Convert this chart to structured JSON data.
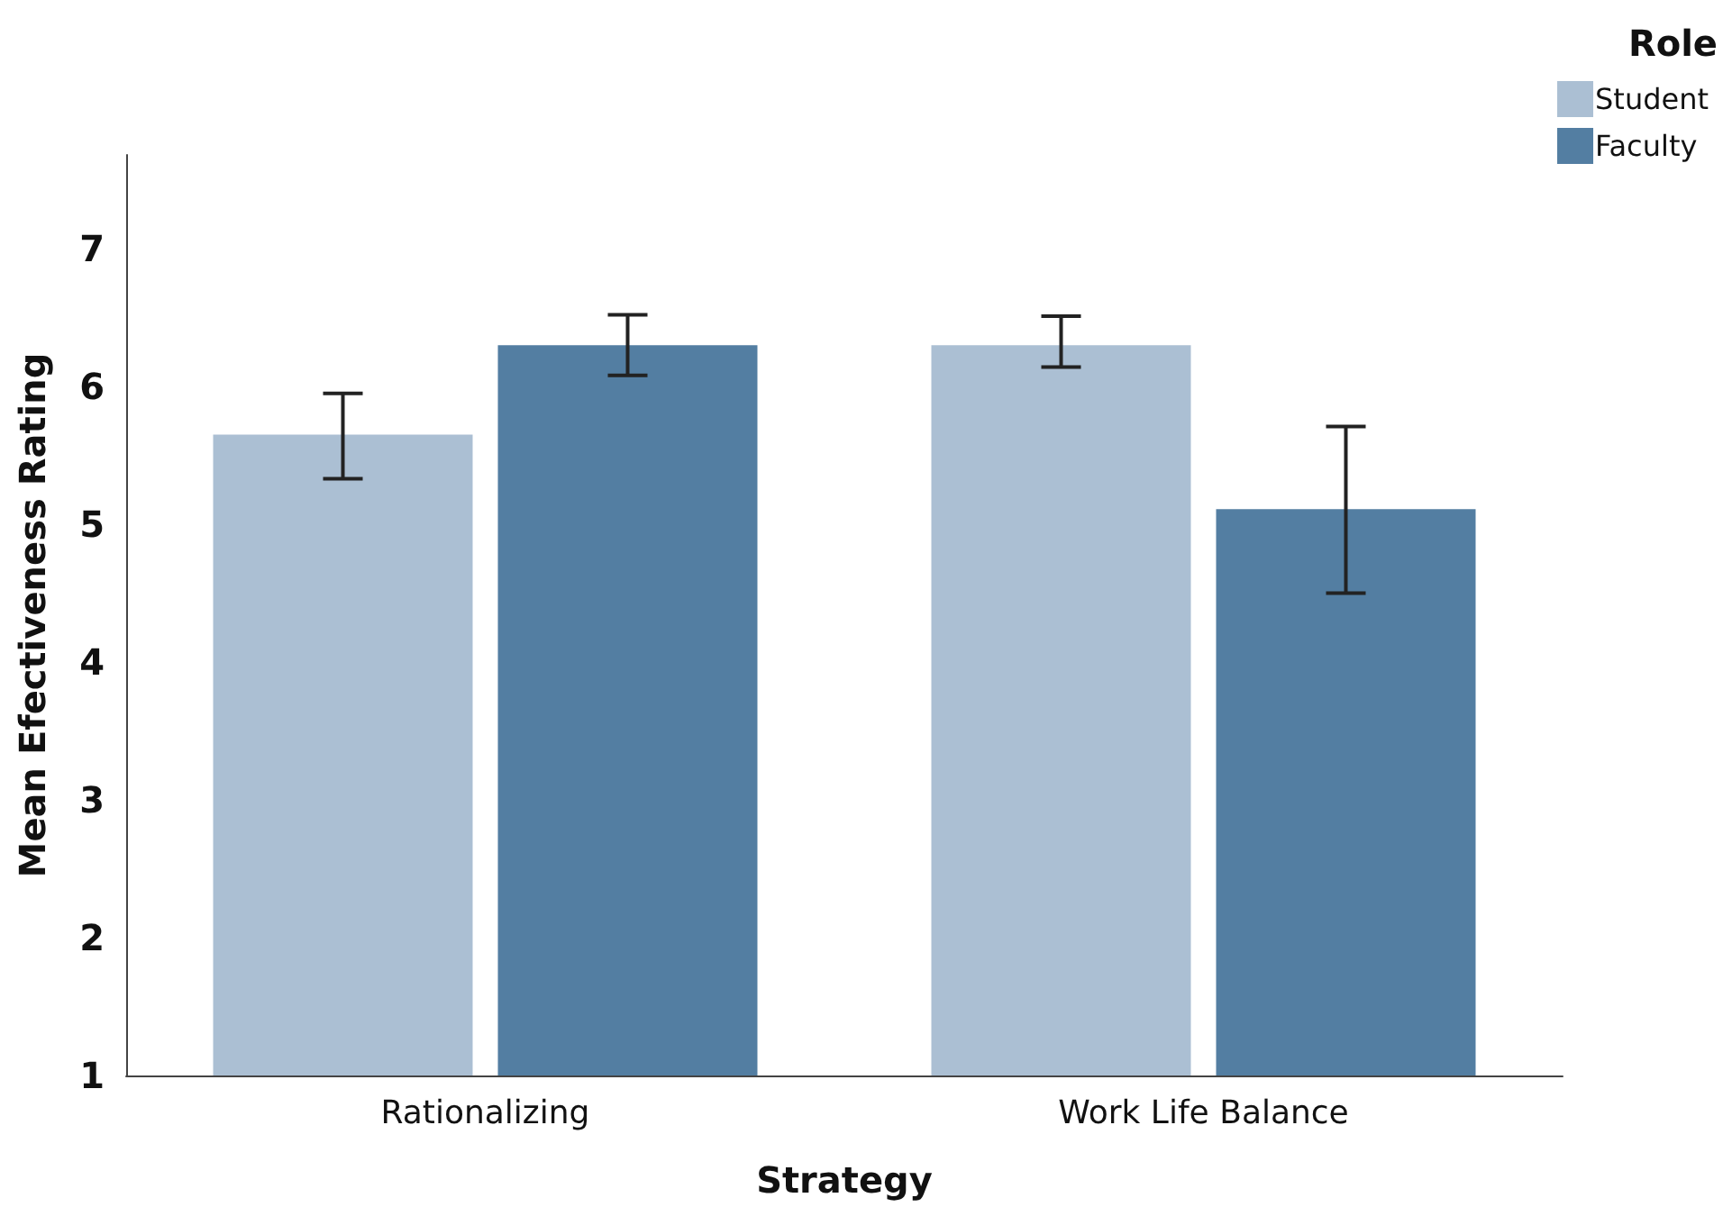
{
  "chart_data": {
    "type": "bar",
    "xlabel": "Strategy",
    "ylabel": "Mean Efectiveness Rating",
    "legend_title": "Role",
    "categories": [
      "Rationalizing",
      "Work Life Balance"
    ],
    "series": [
      {
        "name": "Student",
        "color": "#abbfd3",
        "values": [
          5.65,
          6.3
        ],
        "errors": [
          [
            5.33,
            5.95
          ],
          [
            6.14,
            6.51
          ]
        ]
      },
      {
        "name": "Faculty",
        "color": "#537ea2",
        "values": [
          6.3,
          5.11
        ],
        "errors": [
          [
            6.08,
            6.52
          ],
          [
            4.5,
            5.71
          ]
        ]
      }
    ],
    "ylim": [
      1,
      7.68
    ],
    "yticks": [
      1,
      2,
      3,
      4,
      5,
      6,
      7
    ],
    "grid": false,
    "legend": "top right"
  }
}
